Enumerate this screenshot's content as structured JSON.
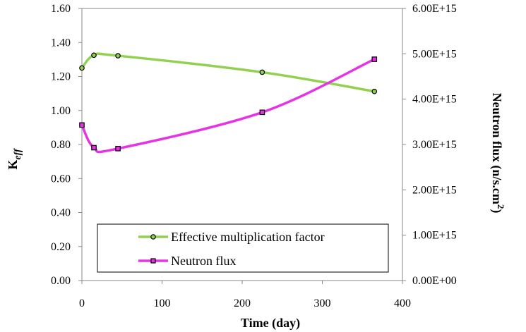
{
  "chart_data": {
    "type": "line",
    "xlabel": "Time (day)",
    "ylabel_main": "K",
    "ylabel_sub": "eff",
    "y2label_main": "Neutron flux (n/s.cm",
    "y2label_sup": "2",
    "y2label_end": ")",
    "xlim": [
      0,
      400
    ],
    "ylim": [
      0,
      1.6
    ],
    "y2lim": [
      0,
      6000000000000000.0
    ],
    "xticks": [
      "0",
      "100",
      "200",
      "300",
      "400"
    ],
    "yticks": [
      "0.00",
      "0.20",
      "0.40",
      "0.60",
      "0.80",
      "1.00",
      "1.20",
      "1.40",
      "1.60"
    ],
    "y2ticks": [
      "0.00E+00",
      "1.00E+15",
      "2.00E+15",
      "3.00E+15",
      "4.00E+15",
      "5.00E+15",
      "6.00E+15"
    ],
    "legend_position": "bottom-left",
    "grid": false,
    "series": [
      {
        "name": "Effective multiplication factor",
        "axis": "left",
        "color": "#92D050",
        "marker": "circle",
        "x": [
          0,
          15,
          45,
          225,
          365
        ],
        "y": [
          1.25,
          1.325,
          1.322,
          1.225,
          1.112
        ]
      },
      {
        "name": "Neutron flux",
        "axis": "right",
        "color": "#E633E6",
        "marker": "square",
        "x": [
          0,
          15,
          45,
          225,
          365
        ],
        "y": [
          3430000000000000.0,
          2930000000000000.0,
          2910000000000000.0,
          3710000000000000.0,
          4880000000000000.0
        ]
      }
    ]
  }
}
